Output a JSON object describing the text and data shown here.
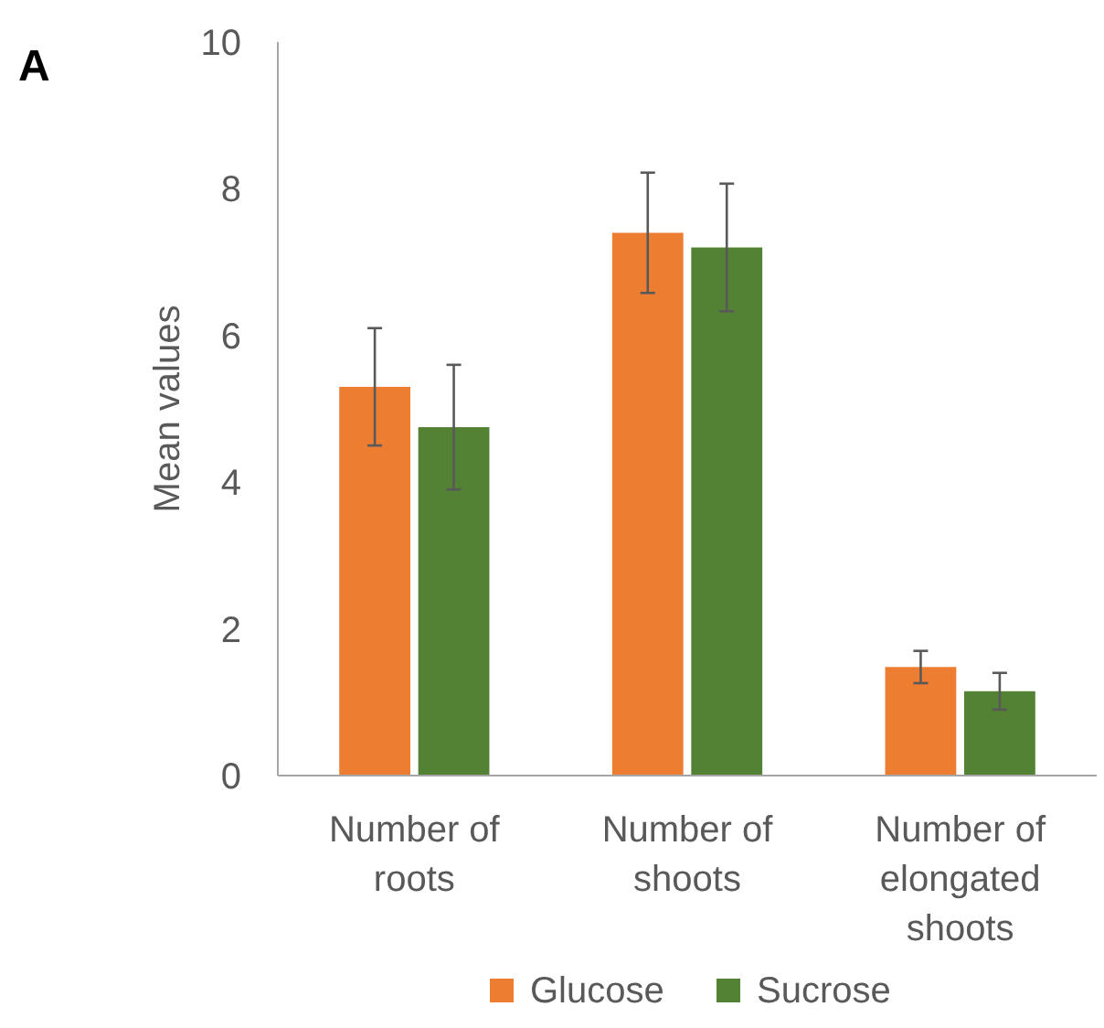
{
  "chart_data": {
    "type": "bar",
    "title": "A",
    "ylabel": "Mean values",
    "categories": [
      "Number of roots",
      "Number of shoots",
      "Number of elongated shoots"
    ],
    "series": [
      {
        "name": "Glucose",
        "color": "#ed7d31",
        "values": [
          5.3,
          7.4,
          1.48
        ],
        "errors": [
          0.8,
          0.82,
          0.22
        ]
      },
      {
        "name": "Sucrose",
        "color": "#548235",
        "values": [
          4.75,
          7.2,
          1.15
        ],
        "errors": [
          0.85,
          0.87,
          0.25
        ]
      }
    ],
    "ylim": [
      0,
      10
    ],
    "yticks": [
      0,
      2,
      4,
      6,
      8,
      10
    ],
    "grid": false,
    "legend": "bottom"
  }
}
